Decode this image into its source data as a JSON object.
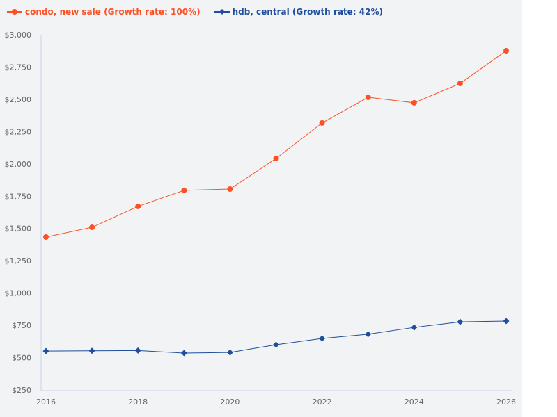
{
  "chart_data": {
    "type": "line",
    "x": [
      2016,
      2017,
      2018,
      2019,
      2020,
      2021,
      2022,
      2023,
      2024,
      2025,
      2026
    ],
    "xticks": [
      "2016",
      "2018",
      "2020",
      "2022",
      "2024",
      "2026"
    ],
    "yticks": [
      "$250",
      "$500",
      "$750",
      "$1,000",
      "$1,250",
      "$1,500",
      "$1,750",
      "$2,000",
      "$2,250",
      "$2,500",
      "$2,750",
      "$3,000"
    ],
    "ylim": [
      250,
      3000
    ],
    "grid": false,
    "legend_position": "top-left",
    "series": [
      {
        "name": "condo, new sale (Growth rate: 100%)",
        "color": "#fc5025",
        "marker": "circle",
        "values": [
          1434,
          1509,
          1671,
          1795,
          1805,
          2042,
          2317,
          2516,
          2473,
          2623,
          2876
        ]
      },
      {
        "name": "hdb, central (Growth rate: 42%)",
        "color": "#1f4e9c",
        "marker": "diamond",
        "values": [
          551,
          553,
          555,
          535,
          540,
          600,
          648,
          681,
          734,
          777,
          783
        ]
      }
    ]
  }
}
